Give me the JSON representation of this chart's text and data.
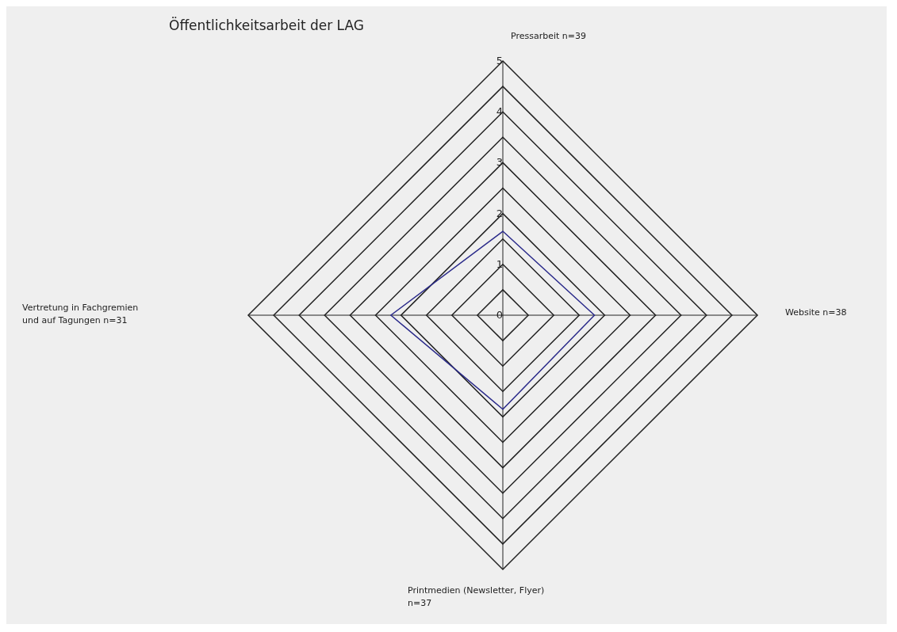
{
  "chart_data": {
    "type": "radar",
    "title": "Öffentlichkeitsarbeit der LAG",
    "categories": [
      "Pressarbeit n=39",
      "Website n=38",
      "Printmedien (Newsletter, Flyer)\nn=37",
      "Vertretung in Fachgremien\nund auf Tagungen n=31"
    ],
    "series": [
      {
        "color": "#2a2a8a",
        "values": [
          1.65,
          1.8,
          1.85,
          2.2
        ]
      }
    ],
    "ylim": [
      0,
      5
    ],
    "yticks": [
      0,
      1,
      2,
      3,
      4,
      5
    ],
    "grid": true
  }
}
